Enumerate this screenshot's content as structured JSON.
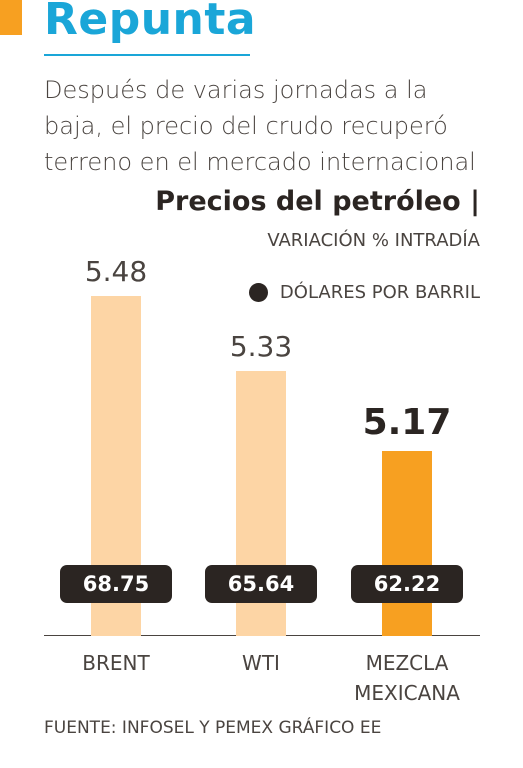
{
  "header": {
    "title": "Repunta",
    "subtitle": "Después de varias jornadas a la baja, el precio del crudo recuperó terreno en el mercado internacional"
  },
  "chart_data": {
    "type": "bar",
    "title": "Precios del petróleo |",
    "categories": [
      "BRENT",
      "WTI",
      "MEZCLA MEXICANA"
    ],
    "series": [
      {
        "name": "VARIACIÓN % INTRADÍA",
        "values": [
          5.48,
          5.33,
          5.17
        ],
        "colors": [
          "#fdd5a5",
          "#fdd5a5",
          "#f7a021"
        ]
      },
      {
        "name": "DÓLARES POR BARRIL",
        "values": [
          68.75,
          65.64,
          62.22
        ],
        "color": "#2b2522"
      }
    ],
    "highlight": 2,
    "ylim": [
      4.8,
      5.5
    ]
  },
  "source": "FUENTE: INFOSEL Y PEMEX GRÁFICO EE"
}
